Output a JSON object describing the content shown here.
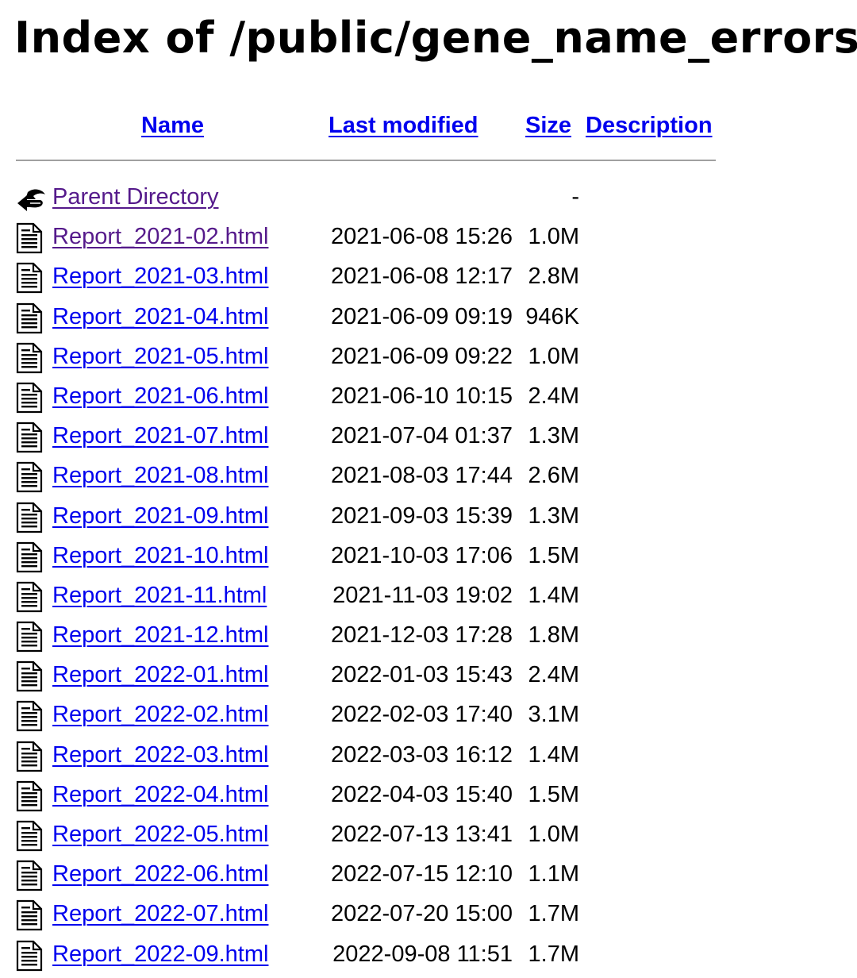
{
  "page": {
    "title": "Index of /public/gene_name_errors"
  },
  "columns": {
    "name": "Name",
    "last_modified": "Last modified",
    "size": "Size",
    "description": "Description"
  },
  "parent": {
    "label": "Parent Directory",
    "size": "-",
    "icon": "back-arrow-icon"
  },
  "files": [
    {
      "name": "Report_2021-02.html",
      "modified": "2021-06-08 15:26",
      "size": "1.0M",
      "visited": true
    },
    {
      "name": "Report_2021-03.html",
      "modified": "2021-06-08 12:17",
      "size": "2.8M"
    },
    {
      "name": "Report_2021-04.html",
      "modified": "2021-06-09 09:19",
      "size": "946K"
    },
    {
      "name": "Report_2021-05.html",
      "modified": "2021-06-09 09:22",
      "size": "1.0M"
    },
    {
      "name": "Report_2021-06.html",
      "modified": "2021-06-10 10:15",
      "size": "2.4M"
    },
    {
      "name": "Report_2021-07.html",
      "modified": "2021-07-04 01:37",
      "size": "1.3M"
    },
    {
      "name": "Report_2021-08.html",
      "modified": "2021-08-03 17:44",
      "size": "2.6M"
    },
    {
      "name": "Report_2021-09.html",
      "modified": "2021-09-03 15:39",
      "size": "1.3M"
    },
    {
      "name": "Report_2021-10.html",
      "modified": "2021-10-03 17:06",
      "size": "1.5M"
    },
    {
      "name": "Report_2021-11.html",
      "modified": "2021-11-03 19:02",
      "size": "1.4M"
    },
    {
      "name": "Report_2021-12.html",
      "modified": "2021-12-03 17:28",
      "size": "1.8M"
    },
    {
      "name": "Report_2022-01.html",
      "modified": "2022-01-03 15:43",
      "size": "2.4M"
    },
    {
      "name": "Report_2022-02.html",
      "modified": "2022-02-03 17:40",
      "size": "3.1M"
    },
    {
      "name": "Report_2022-03.html",
      "modified": "2022-03-03 16:12",
      "size": "1.4M"
    },
    {
      "name": "Report_2022-04.html",
      "modified": "2022-04-03 15:40",
      "size": "1.5M"
    },
    {
      "name": "Report_2022-05.html",
      "modified": "2022-07-13 13:41",
      "size": "1.0M"
    },
    {
      "name": "Report_2022-06.html",
      "modified": "2022-07-15 12:10",
      "size": "1.1M"
    },
    {
      "name": "Report_2022-07.html",
      "modified": "2022-07-20 15:00",
      "size": "1.7M"
    },
    {
      "name": "Report_2022-09.html",
      "modified": "2022-09-08 11:51",
      "size": "1.7M"
    }
  ],
  "icons": {
    "file": "text-file-icon"
  },
  "colors": {
    "link": "#0000ee",
    "visited_link": "#551a8b",
    "rule": "#a0a0a0"
  }
}
